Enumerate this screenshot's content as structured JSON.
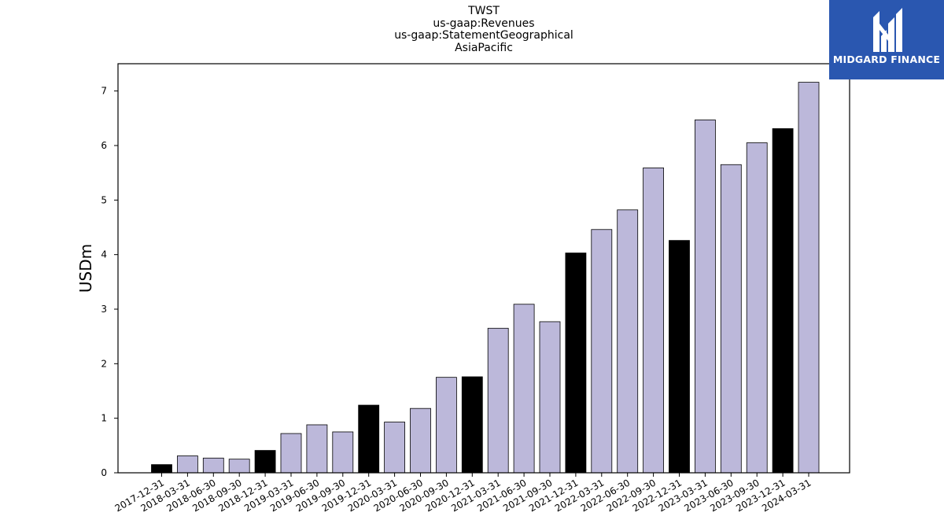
{
  "chart_data": {
    "type": "bar",
    "title_lines": [
      "TWST",
      "us-gaap:Revenues",
      "us-gaap:StatementGeographical",
      "AsiaPacific"
    ],
    "ylabel": "USDm",
    "xlabel": "",
    "ylim": [
      0,
      7.5
    ],
    "yticks": [
      0,
      1,
      2,
      3,
      4,
      5,
      6,
      7
    ],
    "grid": false,
    "colors": {
      "annual": "#000000",
      "quarterly": "#bcb8da",
      "edge": "#000000"
    },
    "categories": [
      "2017-12-31",
      "2018-03-31",
      "2018-06-30",
      "2018-09-30",
      "2018-12-31",
      "2019-03-31",
      "2019-06-30",
      "2019-09-30",
      "2019-12-31",
      "2020-03-31",
      "2020-06-30",
      "2020-09-30",
      "2020-12-31",
      "2021-03-31",
      "2021-06-30",
      "2021-09-30",
      "2021-12-31",
      "2022-03-31",
      "2022-06-30",
      "2022-09-30",
      "2022-12-31",
      "2023-03-31",
      "2023-06-30",
      "2023-09-30",
      "2023-12-31",
      "2024-03-31"
    ],
    "values": [
      0.15,
      0.31,
      0.27,
      0.25,
      0.41,
      0.72,
      0.88,
      0.75,
      1.24,
      0.93,
      1.18,
      1.75,
      1.76,
      2.65,
      3.09,
      2.77,
      4.03,
      4.46,
      4.82,
      5.59,
      4.26,
      6.47,
      5.65,
      6.05,
      6.31,
      7.16
    ],
    "highlight": [
      true,
      false,
      false,
      false,
      true,
      false,
      false,
      false,
      true,
      false,
      false,
      false,
      true,
      false,
      false,
      false,
      true,
      false,
      false,
      false,
      true,
      false,
      false,
      false,
      true,
      false
    ]
  },
  "logo": {
    "name": "MIDGARD FINANCE",
    "icon": "midgard-logo-icon",
    "background": "#2a57b0"
  }
}
